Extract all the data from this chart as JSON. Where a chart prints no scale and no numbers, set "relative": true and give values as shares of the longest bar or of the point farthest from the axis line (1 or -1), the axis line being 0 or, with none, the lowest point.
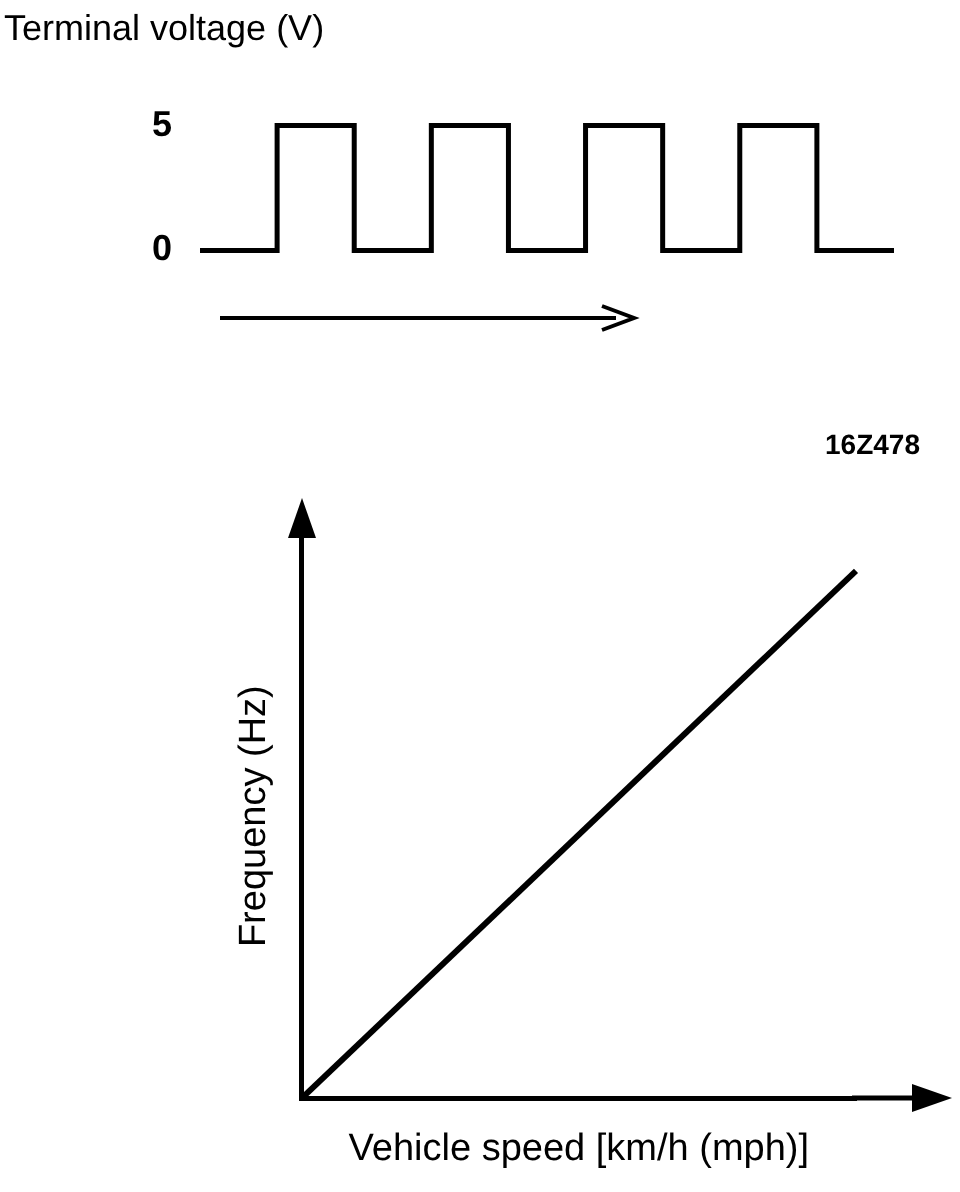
{
  "chart_data": [
    {
      "type": "step",
      "ylabel": "Terminal voltage (V)",
      "annotations": [
        "16Z478"
      ],
      "categories": [
        null,
        null,
        null,
        null,
        null,
        null,
        null,
        null,
        null,
        null
      ],
      "values": [
        0,
        5,
        0,
        5,
        0,
        5,
        0,
        5,
        0,
        0
      ],
      "color": "#000000",
      "ylim": [
        0,
        5
      ],
      "yticks": [
        0,
        5
      ],
      "tick_labels": "y"
    },
    {
      "type": "line",
      "xlabel": "Vehicle speed [km/h (mph)]",
      "ylabel": "Frequency (Hz)",
      "categories": [
        null,
        null
      ],
      "values": [
        0,
        1
      ],
      "color": "#000000",
      "relative": true
    }
  ]
}
